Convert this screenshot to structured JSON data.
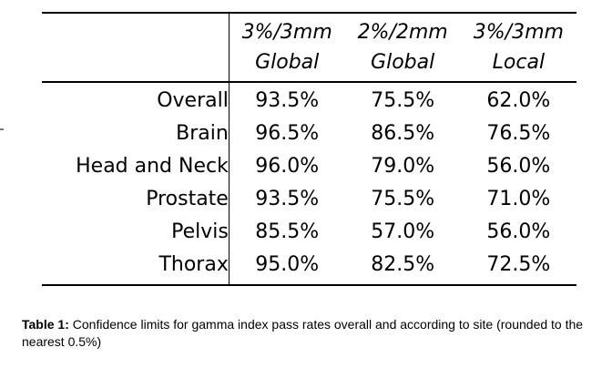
{
  "table": {
    "header": [
      {
        "line1": "3%/3mm",
        "line2": "Global"
      },
      {
        "line1": "2%/2mm",
        "line2": "Global"
      },
      {
        "line1": "3%/3mm",
        "line2": "Local"
      }
    ],
    "rows": [
      {
        "label": "Overall",
        "values": [
          "93.5%",
          "75.5%",
          "62.0%"
        ]
      },
      {
        "label": "Brain",
        "values": [
          "96.5%",
          "86.5%",
          "76.5%"
        ]
      },
      {
        "label": "Head and Neck",
        "values": [
          "96.0%",
          "79.0%",
          "56.0%"
        ]
      },
      {
        "label": "Prostate",
        "values": [
          "93.5%",
          "75.5%",
          "71.0%"
        ]
      },
      {
        "label": "Pelvis",
        "values": [
          "85.5%",
          "57.0%",
          "56.0%"
        ]
      },
      {
        "label": "Thorax",
        "values": [
          "95.0%",
          "82.5%",
          "72.5%"
        ]
      }
    ]
  },
  "caption": {
    "label": "Table 1:",
    "text": " Confidence limits for gamma index pass rates overall and according to site (rounded to the nearest 0.5%)"
  }
}
